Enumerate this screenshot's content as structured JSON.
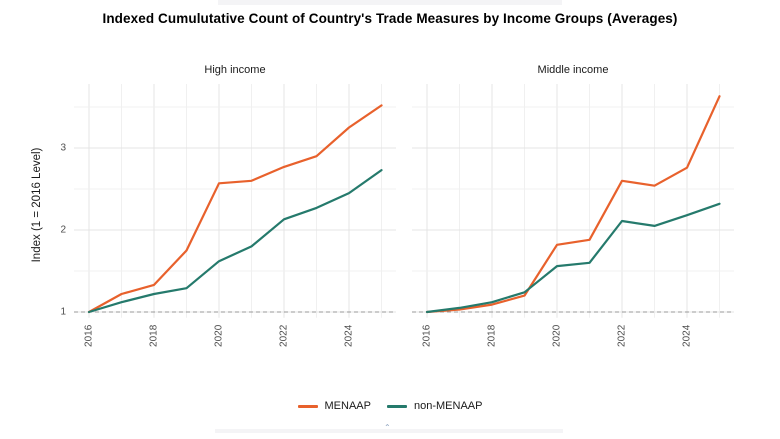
{
  "title": "Indexed Cumulutative Count of Country's Trade Measures by Income Groups (Averages)",
  "y_axis_title": "Index (1 = 2016 Level)",
  "legend": [
    {
      "label": "MENAAP",
      "color": "#E8612C"
    },
    {
      "label": "non-MENAAP",
      "color": "#257A6C"
    }
  ],
  "chart_data": {
    "type": "line",
    "title": "Indexed Cumulutative Count of Country's Trade Measures by Income Groups (Averages)",
    "xlabel": "",
    "ylabel": "Index (1 = 2016 Level)",
    "x": [
      2016,
      2017,
      2018,
      2019,
      2020,
      2021,
      2022,
      2023,
      2024,
      2025
    ],
    "x_ticks": [
      2016,
      2018,
      2020,
      2022,
      2024
    ],
    "y_ticks": [
      1,
      2,
      3
    ],
    "ylim": [
      0.93,
      3.78
    ],
    "grid": true,
    "legend_position": "bottom",
    "reference_line_y": 1,
    "facets": [
      {
        "label": "High income",
        "series": [
          {
            "name": "MENAAP",
            "color": "#E8612C",
            "values": [
              1.0,
              1.22,
              1.33,
              1.75,
              2.57,
              2.6,
              2.77,
              2.9,
              3.25,
              3.52
            ]
          },
          {
            "name": "non-MENAAP",
            "color": "#257A6C",
            "values": [
              1.0,
              1.12,
              1.22,
              1.29,
              1.62,
              1.8,
              2.13,
              2.27,
              2.45,
              2.73
            ]
          }
        ]
      },
      {
        "label": "Middle income",
        "series": [
          {
            "name": "MENAAP",
            "color": "#E8612C",
            "values": [
              1.0,
              1.03,
              1.09,
              1.2,
              1.82,
              1.88,
              2.6,
              2.54,
              2.76,
              3.63
            ]
          },
          {
            "name": "non-MENAAP",
            "color": "#257A6C",
            "values": [
              1.0,
              1.05,
              1.12,
              1.24,
              1.56,
              1.6,
              2.11,
              2.05,
              2.18,
              2.32
            ]
          }
        ]
      }
    ]
  }
}
